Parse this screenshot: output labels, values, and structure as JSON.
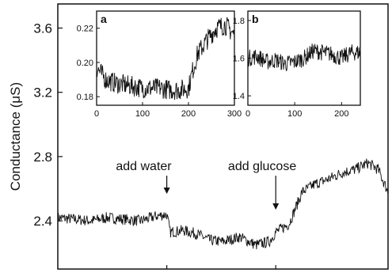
{
  "chart_data": [
    {
      "type": "line",
      "panel": "main",
      "ylabel": "Conductance (μS)",
      "xlabel": "",
      "ylim": [
        2.1,
        3.75
      ],
      "xlim": [
        0,
        1
      ],
      "yticks": [
        2.4,
        2.8,
        3.2,
        3.6
      ],
      "ytick_labels": [
        "2.4",
        "2.8",
        "3.2",
        "3.6"
      ],
      "grid": false,
      "annotations": [
        {
          "text": "add water",
          "x": 0.33
        },
        {
          "text": "add glucose",
          "x": 0.66
        }
      ],
      "x": [
        0.0,
        0.05,
        0.1,
        0.15,
        0.2,
        0.25,
        0.3,
        0.33,
        0.34,
        0.38,
        0.42,
        0.46,
        0.5,
        0.55,
        0.6,
        0.64,
        0.66,
        0.7,
        0.74,
        0.78,
        0.82,
        0.86,
        0.9,
        0.94,
        0.97,
        1.0
      ],
      "series": [
        {
          "values": [
            2.42,
            2.41,
            2.4,
            2.42,
            2.41,
            2.4,
            2.43,
            2.44,
            2.33,
            2.34,
            2.32,
            2.28,
            2.27,
            2.3,
            2.25,
            2.27,
            2.33,
            2.38,
            2.58,
            2.63,
            2.66,
            2.7,
            2.72,
            2.76,
            2.72,
            2.58
          ]
        }
      ]
    },
    {
      "type": "line",
      "panel": "a",
      "label": "a",
      "xlim": [
        0,
        300
      ],
      "ylim": [
        0.175,
        0.23
      ],
      "xticks": [
        0,
        100,
        200,
        300
      ],
      "xtick_labels": [
        "0",
        "100",
        "200",
        "300"
      ],
      "yticks": [
        0.18,
        0.2,
        0.22
      ],
      "ytick_labels": [
        "0.18",
        "0.20",
        "0.22"
      ],
      "x": [
        0,
        20,
        40,
        60,
        80,
        100,
        120,
        140,
        160,
        180,
        200,
        210,
        220,
        240,
        260,
        280,
        300
      ],
      "series": [
        {
          "values": [
            0.197,
            0.19,
            0.188,
            0.187,
            0.186,
            0.185,
            0.185,
            0.185,
            0.184,
            0.184,
            0.185,
            0.196,
            0.205,
            0.213,
            0.22,
            0.222,
            0.216
          ]
        }
      ]
    },
    {
      "type": "line",
      "panel": "b",
      "label": "b",
      "xlim": [
        0,
        240
      ],
      "ylim": [
        1.35,
        1.85
      ],
      "xticks": [
        0,
        100,
        200
      ],
      "xtick_labels": [
        "0",
        "100",
        "200"
      ],
      "yticks": [
        1.4,
        1.6,
        1.8
      ],
      "ytick_labels": [
        "1.4",
        "1.6",
        "1.8"
      ],
      "x": [
        0,
        20,
        40,
        60,
        80,
        100,
        120,
        140,
        160,
        180,
        200,
        220,
        240
      ],
      "series": [
        {
          "values": [
            1.6,
            1.61,
            1.58,
            1.59,
            1.57,
            1.58,
            1.6,
            1.64,
            1.63,
            1.62,
            1.6,
            1.63,
            1.63
          ]
        }
      ]
    }
  ]
}
